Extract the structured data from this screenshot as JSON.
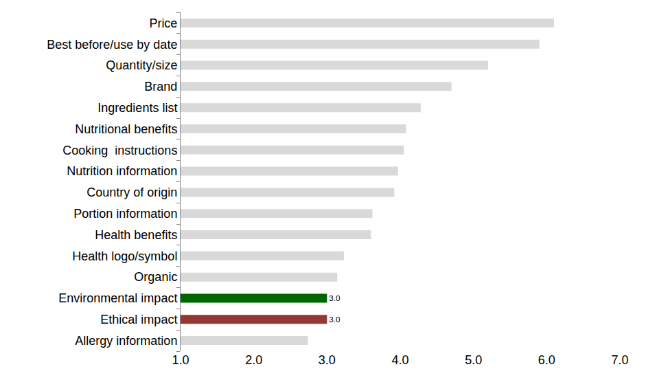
{
  "chart_data": {
    "type": "bar",
    "orientation": "horizontal",
    "categories": [
      "Price",
      "Best before/use by date",
      "Quantity/size",
      "Brand",
      "Ingredients list",
      "Nutritional benefits",
      "Cooking  instructions",
      "Nutrition information",
      "Country of origin",
      "Portion information",
      "Health benefits",
      "Health logo/symbol",
      "Organic",
      "Environmental impact",
      "Ethical impact",
      "Allergy information"
    ],
    "values": [
      6.1,
      5.9,
      5.2,
      4.7,
      4.28,
      4.08,
      4.05,
      3.97,
      3.92,
      3.62,
      3.6,
      3.23,
      3.14,
      3.0,
      3.0,
      2.74
    ],
    "value_labels": [
      null,
      null,
      null,
      null,
      null,
      null,
      null,
      null,
      null,
      null,
      null,
      null,
      null,
      "3.0",
      "3.0",
      null
    ],
    "data_labels": true,
    "colors": [
      "#d9d9d9",
      "#d9d9d9",
      "#d9d9d9",
      "#d9d9d9",
      "#d9d9d9",
      "#d9d9d9",
      "#d9d9d9",
      "#d9d9d9",
      "#d9d9d9",
      "#d9d9d9",
      "#d9d9d9",
      "#d9d9d9",
      "#d9d9d9",
      "#006600",
      "#953735",
      "#d9d9d9"
    ],
    "xlim": [
      1,
      7
    ],
    "xticks": [
      {
        "value": 1,
        "label": "1.0"
      },
      {
        "value": 2,
        "label": "2.0"
      },
      {
        "value": 3,
        "label": "3.0"
      },
      {
        "value": 4,
        "label": "4.0"
      },
      {
        "value": 5,
        "label": "5.0"
      },
      {
        "value": 6,
        "label": "6.0"
      },
      {
        "value": 7,
        "label": "7.0"
      }
    ],
    "grid": false
  }
}
